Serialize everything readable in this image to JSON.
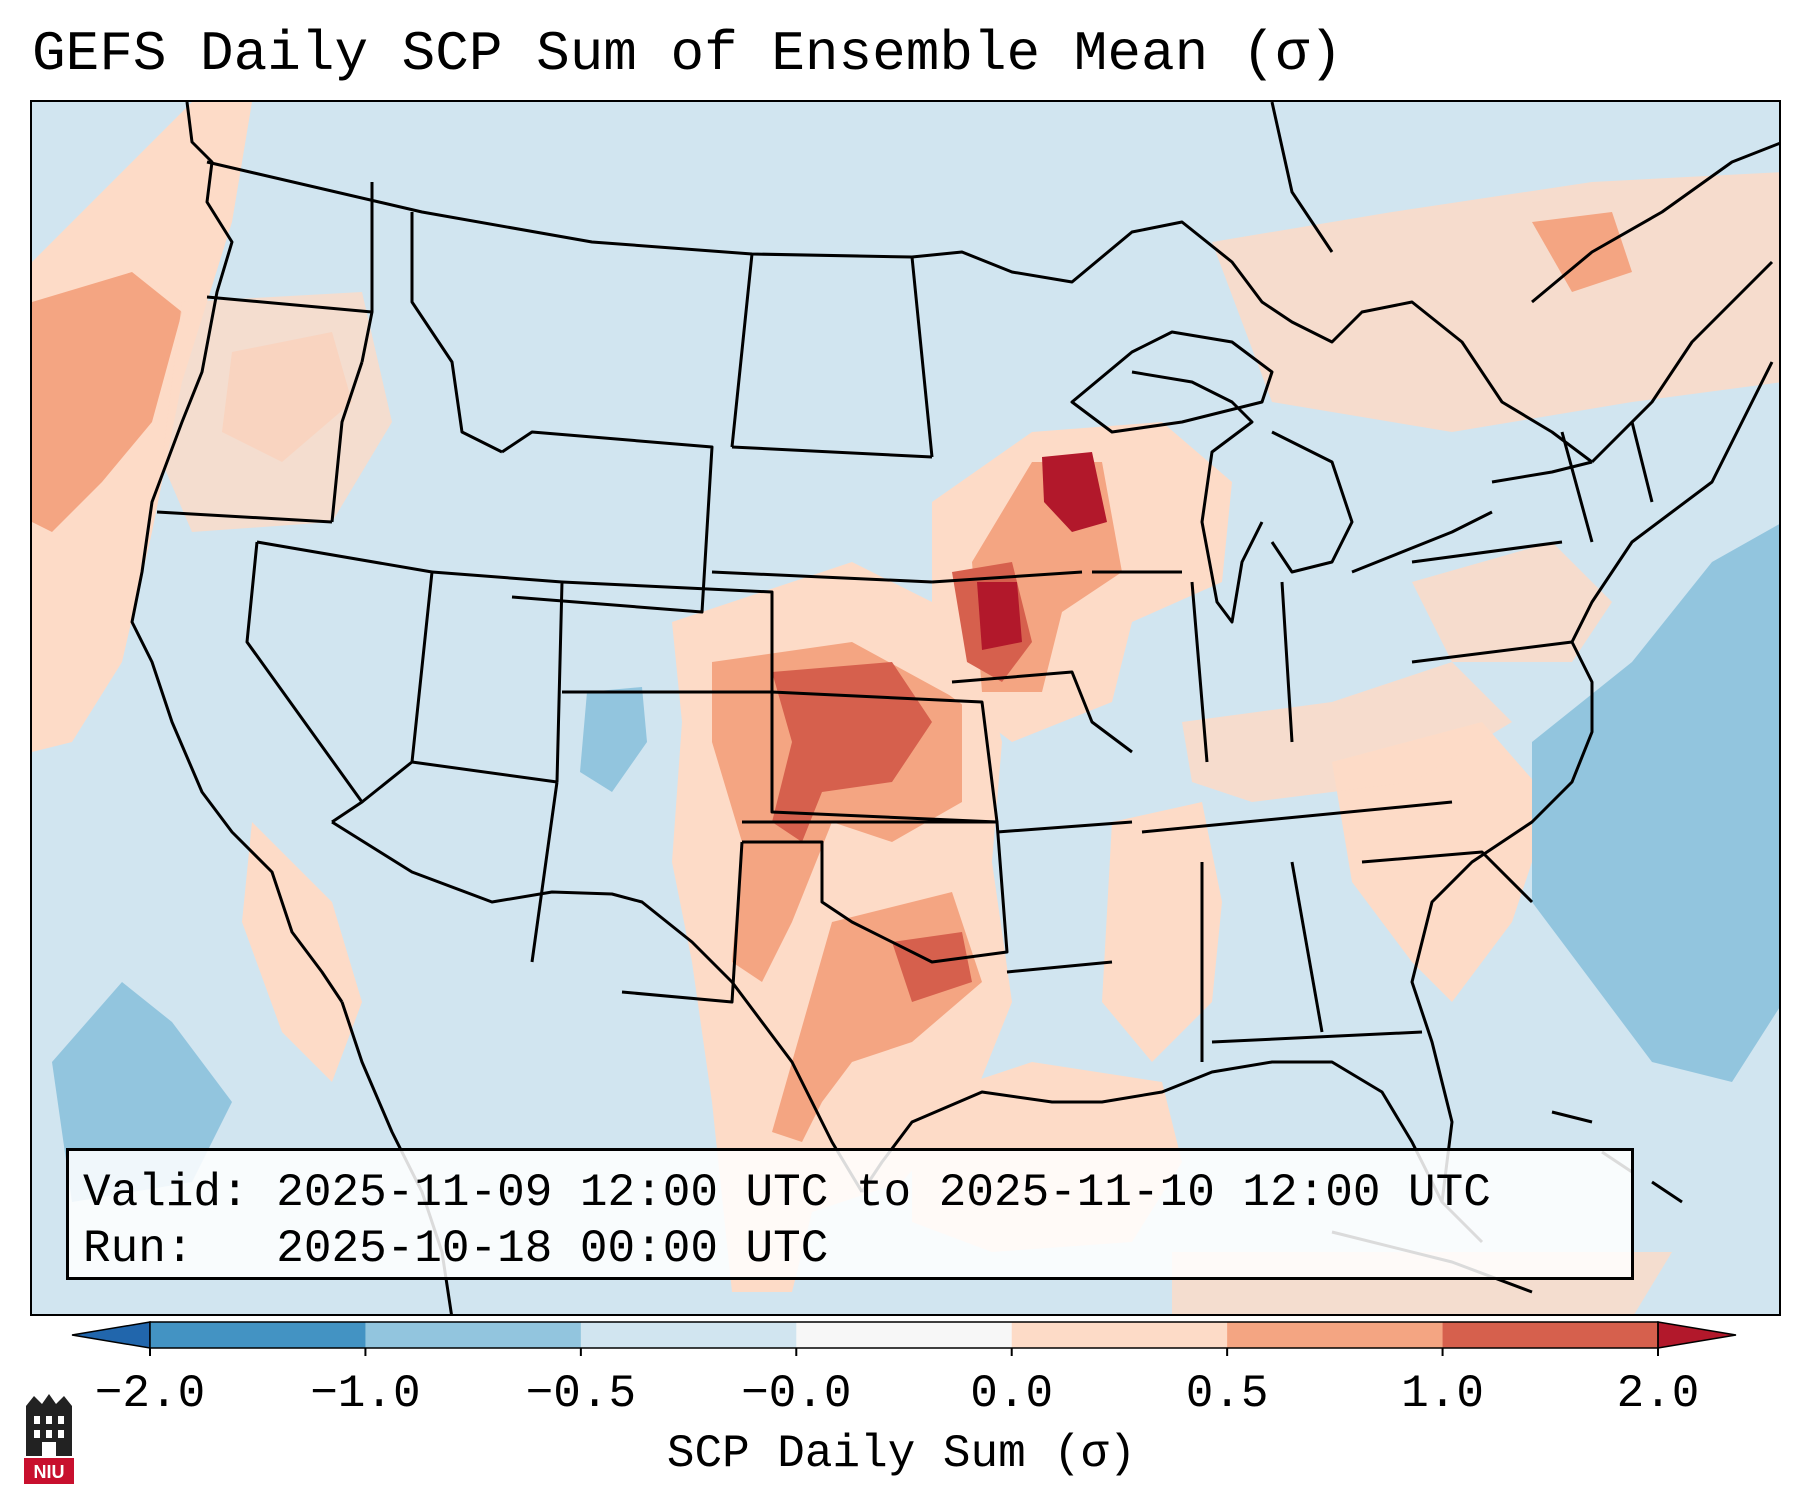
{
  "title": "GEFS Daily SCP Sum of Ensemble Mean (σ)",
  "info": {
    "valid_label": "Valid:",
    "valid_value": "2025-11-09 12:00 UTC to 2025-11-10 12:00 UTC",
    "run_label": "Run:",
    "run_value": "2025-10-18 00:00 UTC"
  },
  "colorbar": {
    "label": "SCP Daily Sum (σ)",
    "ticks": [
      "−2.0",
      "−1.0",
      "−0.5",
      "−0.0",
      "0.0",
      "0.5",
      "1.0",
      "2.0"
    ],
    "bins": [
      {
        "color": "#4393c3"
      },
      {
        "color": "#92c5de"
      },
      {
        "color": "#d1e5f0"
      },
      {
        "color": "#f7f7f7"
      },
      {
        "color": "#fddbc7"
      },
      {
        "color": "#f4a582"
      },
      {
        "color": "#d6604d"
      }
    ],
    "under_color": "#2166ac",
    "over_color": "#b2182b"
  },
  "logo": {
    "text": "NIU",
    "color": "#c8102e"
  },
  "map": {
    "background_color": "#d1e5f0",
    "regions": [
      {
        "name": "west-coast-offshore",
        "value": 0.5
      },
      {
        "name": "pacific-northwest",
        "value": 0.5
      },
      {
        "name": "pacific-offshore-southwest",
        "value": -1.0
      },
      {
        "name": "southern-plains-kansas-oklahoma",
        "value": 1.0
      },
      {
        "name": "upper-midwest-wisconsin-iowa",
        "value": 1.5
      },
      {
        "name": "north-central-texas",
        "value": 1.2
      },
      {
        "name": "mississippi-valley",
        "value": 0.3
      },
      {
        "name": "southeast",
        "value": 0.2
      },
      {
        "name": "gulf-of-mexico",
        "value": 0.3
      },
      {
        "name": "western-atlantic",
        "value": -0.8
      },
      {
        "name": "colorado-minimum",
        "value": -0.8
      },
      {
        "name": "northeast-canada",
        "value": 0.4
      }
    ]
  }
}
